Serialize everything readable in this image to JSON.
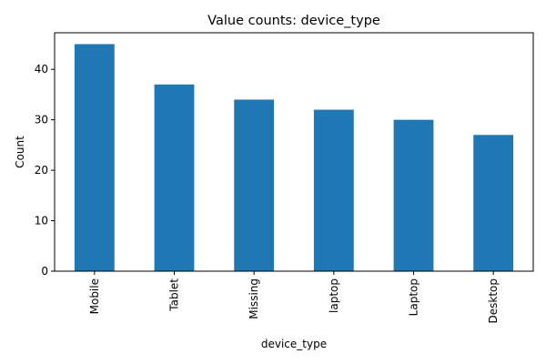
{
  "chart_data": {
    "type": "bar",
    "title": "Value counts: device_type",
    "xlabel": "device_type",
    "ylabel": "Count",
    "categories": [
      "Mobile",
      "Tablet",
      "Missing",
      "laptop",
      "Laptop",
      "Desktop"
    ],
    "values": [
      45,
      37,
      34,
      32,
      30,
      27
    ],
    "ylim": [
      0,
      47.25
    ],
    "yticks": [
      0,
      10,
      20,
      30,
      40
    ],
    "ytick_labels": [
      "0",
      "10",
      "20",
      "30",
      "40"
    ],
    "bar_color": "#1f77b4",
    "grid": false,
    "legend": "none"
  }
}
